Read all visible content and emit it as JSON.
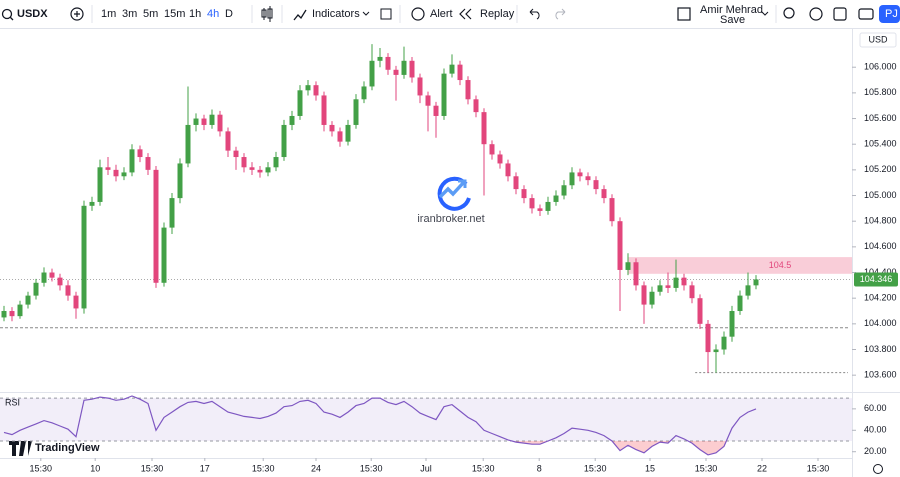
{
  "toolbar": {
    "symbol": "USDX",
    "intervals": [
      "1m",
      "3m",
      "5m",
      "15m",
      "1h",
      "4h",
      "D"
    ],
    "active_interval": 5,
    "indicators": "Indicators",
    "alert": "Alert",
    "replay": "Replay",
    "user": "Amir Mehrad",
    "save": "Save",
    "avatar": "PJ",
    "currency": "USD"
  },
  "watermark": "iranbroker.net",
  "brand": "TradingView",
  "chart_data": {
    "type": "candlestick",
    "up_color": "#43a047",
    "down_color": "#e2467c",
    "candles": [
      [
        104.05,
        104.14,
        104.02,
        104.1
      ],
      [
        104.1,
        104.13,
        104.02,
        104.06
      ],
      [
        104.06,
        104.18,
        104.04,
        104.15
      ],
      [
        104.15,
        104.25,
        104.12,
        104.22
      ],
      [
        104.22,
        104.35,
        104.19,
        104.32
      ],
      [
        104.32,
        104.44,
        104.29,
        104.4
      ],
      [
        104.4,
        104.43,
        104.33,
        104.36
      ],
      [
        104.36,
        104.39,
        104.26,
        104.3
      ],
      [
        104.3,
        104.34,
        104.18,
        104.22
      ],
      [
        104.22,
        104.25,
        104.04,
        104.12
      ],
      [
        104.12,
        104.96,
        104.08,
        104.92
      ],
      [
        104.92,
        104.99,
        104.88,
        104.95
      ],
      [
        104.95,
        105.28,
        104.92,
        105.22
      ],
      [
        105.22,
        105.3,
        105.16,
        105.2
      ],
      [
        105.2,
        105.24,
        105.11,
        105.15
      ],
      [
        105.15,
        105.22,
        105.12,
        105.18
      ],
      [
        105.18,
        105.4,
        105.15,
        105.36
      ],
      [
        105.36,
        105.39,
        105.26,
        105.3
      ],
      [
        105.3,
        105.33,
        105.16,
        105.2
      ],
      [
        105.2,
        105.23,
        104.28,
        104.32
      ],
      [
        104.32,
        104.79,
        104.29,
        104.75
      ],
      [
        104.75,
        105.02,
        104.7,
        104.98
      ],
      [
        104.98,
        105.29,
        104.94,
        105.25
      ],
      [
        105.25,
        105.85,
        105.22,
        105.55
      ],
      [
        105.55,
        105.64,
        105.5,
        105.6
      ],
      [
        105.6,
        105.63,
        105.51,
        105.55
      ],
      [
        105.55,
        105.67,
        105.52,
        105.63
      ],
      [
        105.63,
        105.66,
        105.46,
        105.5
      ],
      [
        105.5,
        105.53,
        105.3,
        105.35
      ],
      [
        105.35,
        105.38,
        105.2,
        105.3
      ],
      [
        105.3,
        105.33,
        105.18,
        105.22
      ],
      [
        105.22,
        105.26,
        105.16,
        105.2
      ],
      [
        105.2,
        105.23,
        105.14,
        105.18
      ],
      [
        105.18,
        105.26,
        105.15,
        105.22
      ],
      [
        105.22,
        105.34,
        105.19,
        105.3
      ],
      [
        105.3,
        105.59,
        105.27,
        105.55
      ],
      [
        105.55,
        105.66,
        105.51,
        105.62
      ],
      [
        105.62,
        105.86,
        105.59,
        105.82
      ],
      [
        105.82,
        105.9,
        105.78,
        105.86
      ],
      [
        105.86,
        105.89,
        105.74,
        105.78
      ],
      [
        105.78,
        105.81,
        105.5,
        105.55
      ],
      [
        105.55,
        105.58,
        105.46,
        105.5
      ],
      [
        105.5,
        105.53,
        105.38,
        105.42
      ],
      [
        105.42,
        105.59,
        105.39,
        105.55
      ],
      [
        105.55,
        105.79,
        105.52,
        105.75
      ],
      [
        105.75,
        105.89,
        105.72,
        105.85
      ],
      [
        105.85,
        106.18,
        105.82,
        106.05
      ],
      [
        106.05,
        106.15,
        106.0,
        106.08
      ],
      [
        106.08,
        106.11,
        105.94,
        105.98
      ],
      [
        105.98,
        106.01,
        105.74,
        105.94
      ],
      [
        105.94,
        106.16,
        105.91,
        106.05
      ],
      [
        106.05,
        106.08,
        105.88,
        105.92
      ],
      [
        105.92,
        105.95,
        105.72,
        105.78
      ],
      [
        105.78,
        105.81,
        105.5,
        105.7
      ],
      [
        105.7,
        105.73,
        105.45,
        105.62
      ],
      [
        105.62,
        105.99,
        105.59,
        105.95
      ],
      [
        105.95,
        106.1,
        105.92,
        106.02
      ],
      [
        106.02,
        106.05,
        105.86,
        105.9
      ],
      [
        105.9,
        105.93,
        105.71,
        105.75
      ],
      [
        105.75,
        105.78,
        105.61,
        105.65
      ],
      [
        105.65,
        105.68,
        105.0,
        105.4
      ],
      [
        105.4,
        105.43,
        105.28,
        105.32
      ],
      [
        105.32,
        105.35,
        105.21,
        105.25
      ],
      [
        105.25,
        105.28,
        105.11,
        105.15
      ],
      [
        105.15,
        105.18,
        105.01,
        105.05
      ],
      [
        105.05,
        105.08,
        104.94,
        104.98
      ],
      [
        104.98,
        105.01,
        104.86,
        104.9
      ],
      [
        104.9,
        104.93,
        104.84,
        104.88
      ],
      [
        104.88,
        104.99,
        104.85,
        104.95
      ],
      [
        104.95,
        105.04,
        104.92,
        105.0
      ],
      [
        105.0,
        105.12,
        104.97,
        105.08
      ],
      [
        105.08,
        105.22,
        105.05,
        105.18
      ],
      [
        105.18,
        105.21,
        105.11,
        105.15
      ],
      [
        105.15,
        105.18,
        105.08,
        105.12
      ],
      [
        105.12,
        105.15,
        105.01,
        105.05
      ],
      [
        105.05,
        105.08,
        104.94,
        104.98
      ],
      [
        104.98,
        105.01,
        104.76,
        104.8
      ],
      [
        104.8,
        104.83,
        104.1,
        104.42
      ],
      [
        104.42,
        104.55,
        104.38,
        104.48
      ],
      [
        104.48,
        104.51,
        104.26,
        104.3
      ],
      [
        104.3,
        104.33,
        104.0,
        104.15
      ],
      [
        104.15,
        104.29,
        104.12,
        104.25
      ],
      [
        104.25,
        104.34,
        104.22,
        104.3
      ],
      [
        104.3,
        104.4,
        104.24,
        104.28
      ],
      [
        104.28,
        104.5,
        104.25,
        104.36
      ],
      [
        104.36,
        104.39,
        104.26,
        104.3
      ],
      [
        104.3,
        104.33,
        104.16,
        104.2
      ],
      [
        104.2,
        104.23,
        103.96,
        104.0
      ],
      [
        104.0,
        104.03,
        103.62,
        103.78
      ],
      [
        103.78,
        103.84,
        103.62,
        103.8
      ],
      [
        103.8,
        103.94,
        103.76,
        103.9
      ],
      [
        103.9,
        104.14,
        103.86,
        104.1
      ],
      [
        104.1,
        104.26,
        104.07,
        104.22
      ],
      [
        104.22,
        104.4,
        104.19,
        104.3
      ],
      [
        104.3,
        104.38,
        104.27,
        104.346
      ]
    ],
    "xlim": [
      -0.5,
      106
    ],
    "xticks": [
      {
        "value": 4.6,
        "label": "15:30"
      },
      {
        "value": 11.4,
        "label": "10"
      },
      {
        "value": 18.5,
        "label": "15:30"
      },
      {
        "value": 25.1,
        "label": "17"
      },
      {
        "value": 32.4,
        "label": "15:30"
      },
      {
        "value": 39,
        "label": "24"
      },
      {
        "value": 45.9,
        "label": "15:30"
      },
      {
        "value": 52.75,
        "label": "Jul"
      },
      {
        "value": 59.9,
        "label": "15:30"
      },
      {
        "value": 66.9,
        "label": "8"
      },
      {
        "value": 73.9,
        "label": "15:30"
      },
      {
        "value": 80.75,
        "label": "15"
      },
      {
        "value": 87.75,
        "label": "15:30"
      },
      {
        "value": 94.75,
        "label": "22"
      },
      {
        "value": 101.75,
        "label": "15:30"
      }
    ],
    "ylim": [
      103.5,
      106.29
    ],
    "yticks": [
      {
        "value": 103.6,
        "label": "103.600"
      },
      {
        "value": 103.8,
        "label": "103.800"
      },
      {
        "value": 104,
        "label": "104.000"
      },
      {
        "value": 104.2,
        "label": "104.200"
      },
      {
        "value": 104.4,
        "label": "104.400"
      },
      {
        "value": 104.6,
        "label": "104.600"
      },
      {
        "value": 104.8,
        "label": "104.800"
      },
      {
        "value": 105,
        "label": "105.000"
      },
      {
        "value": 105.2,
        "label": "105.200"
      },
      {
        "value": 105.4,
        "label": "105.400"
      },
      {
        "value": 105.6,
        "label": "105.600"
      },
      {
        "value": 105.8,
        "label": "105.800"
      },
      {
        "value": 106,
        "label": "106.000"
      }
    ],
    "zone": {
      "label": "104.5",
      "low": 104.39,
      "high": 104.52,
      "from": 78
    },
    "levels": [
      {
        "value": 103.97,
        "from": -0.5
      },
      {
        "value": 103.62,
        "from": 86.4
      }
    ],
    "rsi": {
      "name": "RSI",
      "color": "#7e57c2",
      "values": [
        38,
        36,
        40,
        43,
        46,
        49,
        47,
        44,
        41,
        34,
        68,
        69,
        71,
        70,
        68,
        69,
        72,
        69,
        65,
        40,
        52,
        57,
        62,
        66,
        67,
        65,
        67,
        62,
        57,
        55,
        53,
        52,
        51,
        53,
        56,
        62,
        63,
        67,
        68,
        65,
        57,
        55,
        52,
        57,
        63,
        65,
        70,
        70,
        66,
        64,
        67,
        62,
        56,
        53,
        50,
        62,
        64,
        58,
        52,
        48,
        40,
        37,
        34,
        31,
        29,
        28,
        27,
        27,
        30,
        33,
        37,
        42,
        41,
        40,
        38,
        35,
        30,
        21,
        26,
        22,
        19,
        25,
        29,
        28,
        35,
        32,
        28,
        22,
        17,
        19,
        25,
        42,
        52,
        57,
        60
      ],
      "ylim": [
        16,
        72
      ],
      "band": [
        30,
        70
      ],
      "yticks": [
        {
          "value": 20,
          "label": "20.00"
        },
        {
          "value": 40,
          "label": "40.00"
        },
        {
          "value": 60,
          "label": "60.00"
        }
      ]
    }
  }
}
